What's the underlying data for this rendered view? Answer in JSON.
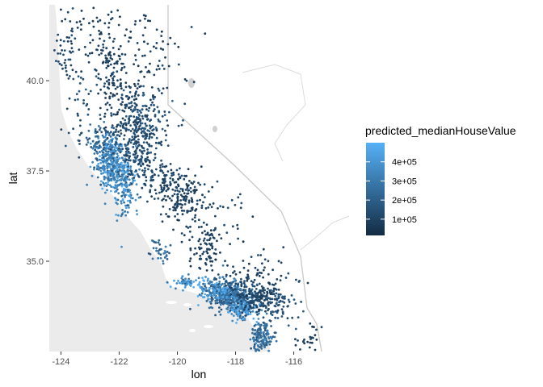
{
  "chart_data": {
    "type": "scatter",
    "xlabel": "lon",
    "ylabel": "lat",
    "xlim": [
      -124.4,
      -114.1
    ],
    "ylim": [
      32.5,
      42.1
    ],
    "x_ticks": [
      {
        "value": -124,
        "label": "-124"
      },
      {
        "value": -122,
        "label": "-122"
      },
      {
        "value": -120,
        "label": "-120"
      },
      {
        "value": -118,
        "label": "-118"
      },
      {
        "value": -116,
        "label": "-116"
      }
    ],
    "y_ticks": [
      {
        "value": 35.0,
        "label": "35.0"
      },
      {
        "value": 37.5,
        "label": "37.5"
      },
      {
        "value": 40.0,
        "label": "40.0"
      }
    ],
    "grid": false,
    "background": "basemap of California (land white, ocean grey, state borders)",
    "legend": {
      "title": "predicted_medianHouseValue",
      "position": "right",
      "type": "colorbar",
      "color_low": "#132b43",
      "color_high": "#56b1f7",
      "range": [
        15000,
        500000
      ],
      "breaks": [
        {
          "value": 100000,
          "label": "1e+05"
        },
        {
          "value": 200000,
          "label": "2e+05"
        },
        {
          "value": 300000,
          "label": "3e+05"
        },
        {
          "value": 400000,
          "label": "4e+05"
        }
      ]
    },
    "clusters": [
      {
        "lon": -122.3,
        "lat": 37.75,
        "spread_lon": 0.25,
        "spread_lat": 0.35,
        "count": 260,
        "value": 370000
      },
      {
        "lon": -121.9,
        "lat": 37.3,
        "spread_lon": 0.3,
        "spread_lat": 0.3,
        "count": 160,
        "value": 360000
      },
      {
        "lon": -122.6,
        "lat": 38.2,
        "spread_lon": 0.3,
        "spread_lat": 0.3,
        "count": 90,
        "value": 260000
      },
      {
        "lon": -121.4,
        "lat": 38.6,
        "spread_lon": 0.4,
        "spread_lat": 0.4,
        "count": 170,
        "value": 140000
      },
      {
        "lon": -121.3,
        "lat": 37.9,
        "spread_lon": 0.3,
        "spread_lat": 0.3,
        "count": 90,
        "value": 130000
      },
      {
        "lon": -120.5,
        "lat": 37.3,
        "spread_lon": 0.45,
        "spread_lat": 0.35,
        "count": 90,
        "value": 110000
      },
      {
        "lon": -119.8,
        "lat": 36.7,
        "spread_lon": 0.4,
        "spread_lat": 0.35,
        "count": 150,
        "value": 90000
      },
      {
        "lon": -119.0,
        "lat": 35.4,
        "spread_lon": 0.3,
        "spread_lat": 0.3,
        "count": 80,
        "value": 90000
      },
      {
        "lon": -118.2,
        "lat": 34.05,
        "spread_lon": 0.4,
        "spread_lat": 0.22,
        "count": 380,
        "value": 240000
      },
      {
        "lon": -118.6,
        "lat": 34.2,
        "spread_lon": 0.3,
        "spread_lat": 0.15,
        "count": 120,
        "value": 400000
      },
      {
        "lon": -117.8,
        "lat": 33.7,
        "spread_lon": 0.25,
        "spread_lat": 0.15,
        "count": 150,
        "value": 370000
      },
      {
        "lon": -117.3,
        "lat": 34.0,
        "spread_lon": 0.4,
        "spread_lat": 0.2,
        "count": 170,
        "value": 120000
      },
      {
        "lon": -117.1,
        "lat": 32.9,
        "spread_lon": 0.18,
        "spread_lat": 0.2,
        "count": 150,
        "value": 260000
      },
      {
        "lon": -119.7,
        "lat": 34.4,
        "spread_lon": 0.3,
        "spread_lat": 0.08,
        "count": 50,
        "value": 380000
      },
      {
        "lon": -120.6,
        "lat": 35.3,
        "spread_lon": 0.2,
        "spread_lat": 0.2,
        "count": 35,
        "value": 250000
      },
      {
        "lon": -121.8,
        "lat": 36.6,
        "spread_lon": 0.2,
        "spread_lat": 0.25,
        "count": 40,
        "value": 330000
      },
      {
        "lon": -122.0,
        "lat": 39.6,
        "spread_lon": 0.4,
        "spread_lat": 0.5,
        "count": 110,
        "value": 90000
      },
      {
        "lon": -122.4,
        "lat": 40.6,
        "spread_lon": 0.3,
        "spread_lat": 0.3,
        "count": 55,
        "value": 95000
      },
      {
        "lon": -123.8,
        "lat": 40.9,
        "spread_lon": 0.2,
        "spread_lat": 0.5,
        "count": 45,
        "value": 110000
      },
      {
        "lon": -123.2,
        "lat": 39.2,
        "spread_lon": 0.4,
        "spread_lat": 0.5,
        "count": 45,
        "value": 140000
      },
      {
        "lon": -121.0,
        "lat": 39.0,
        "spread_lon": 0.5,
        "spread_lat": 0.5,
        "count": 75,
        "value": 160000
      },
      {
        "lon": -116.5,
        "lat": 33.7,
        "spread_lon": 0.5,
        "spread_lat": 0.3,
        "count": 70,
        "value": 160000
      },
      {
        "lon": -115.5,
        "lat": 32.9,
        "spread_lon": 0.3,
        "spread_lat": 0.2,
        "count": 25,
        "value": 80000
      },
      {
        "lon": -117.3,
        "lat": 34.6,
        "spread_lon": 0.6,
        "spread_lat": 0.3,
        "count": 70,
        "value": 100000
      },
      {
        "lon": -118.4,
        "lat": 36.0,
        "spread_lon": 0.6,
        "spread_lat": 0.6,
        "count": 35,
        "value": 100000
      },
      {
        "lon": -120.8,
        "lat": 40.5,
        "spread_lon": 0.7,
        "spread_lat": 0.8,
        "count": 70,
        "value": 85000
      },
      {
        "lon": -122.5,
        "lat": 41.5,
        "spread_lon": 0.8,
        "spread_lat": 0.4,
        "count": 60,
        "value": 80000
      }
    ]
  }
}
